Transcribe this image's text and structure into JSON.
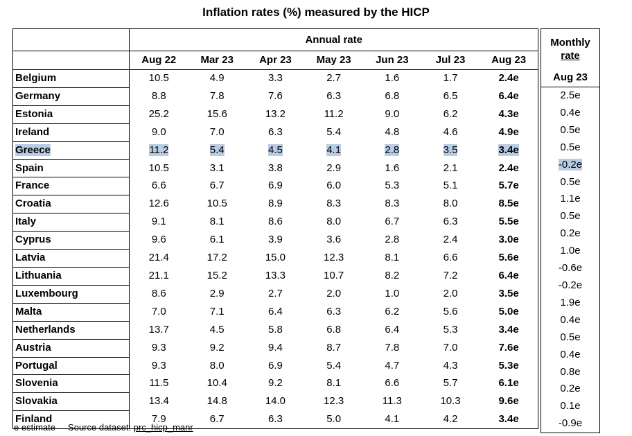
{
  "title": "Inflation rates (%) measured by the HICP",
  "annual_header": "Annual rate",
  "monthly_header_line1": "Monthly",
  "monthly_header_line2": "rate",
  "monthly_month": "Aug 23",
  "columns": [
    "Aug 22",
    "Mar 23",
    "Apr 23",
    "May 23",
    "Jun 23",
    "Jul 23",
    "Aug 23"
  ],
  "highlighted_row": "Greece",
  "rows": [
    {
      "country": "Belgium",
      "values": [
        "10.5",
        "4.9",
        "3.3",
        "2.7",
        "1.6",
        "1.7",
        "2.4e"
      ],
      "monthly": "2.5e"
    },
    {
      "country": "Germany",
      "values": [
        "8.8",
        "7.8",
        "7.6",
        "6.3",
        "6.8",
        "6.5",
        "6.4e"
      ],
      "monthly": "0.4e"
    },
    {
      "country": "Estonia",
      "values": [
        "25.2",
        "15.6",
        "13.2",
        "11.2",
        "9.0",
        "6.2",
        "4.3e"
      ],
      "monthly": "0.5e"
    },
    {
      "country": "Ireland",
      "values": [
        "9.0",
        "7.0",
        "6.3",
        "5.4",
        "4.8",
        "4.6",
        "4.9e"
      ],
      "monthly": "0.5e"
    },
    {
      "country": "Greece",
      "values": [
        "11.2",
        "5.4",
        "4.5",
        "4.1",
        "2.8",
        "3.5",
        "3.4e"
      ],
      "monthly": "-0.2e"
    },
    {
      "country": "Spain",
      "values": [
        "10.5",
        "3.1",
        "3.8",
        "2.9",
        "1.6",
        "2.1",
        "2.4e"
      ],
      "monthly": "0.5e"
    },
    {
      "country": "France",
      "values": [
        "6.6",
        "6.7",
        "6.9",
        "6.0",
        "5.3",
        "5.1",
        "5.7e"
      ],
      "monthly": "1.1e"
    },
    {
      "country": "Croatia",
      "values": [
        "12.6",
        "10.5",
        "8.9",
        "8.3",
        "8.3",
        "8.0",
        "8.5e"
      ],
      "monthly": "0.5e"
    },
    {
      "country": "Italy",
      "values": [
        "9.1",
        "8.1",
        "8.6",
        "8.0",
        "6.7",
        "6.3",
        "5.5e"
      ],
      "monthly": "0.2e"
    },
    {
      "country": "Cyprus",
      "values": [
        "9.6",
        "6.1",
        "3.9",
        "3.6",
        "2.8",
        "2.4",
        "3.0e"
      ],
      "monthly": "1.0e"
    },
    {
      "country": "Latvia",
      "values": [
        "21.4",
        "17.2",
        "15.0",
        "12.3",
        "8.1",
        "6.6",
        "5.6e"
      ],
      "monthly": "-0.6e"
    },
    {
      "country": "Lithuania",
      "values": [
        "21.1",
        "15.2",
        "13.3",
        "10.7",
        "8.2",
        "7.2",
        "6.4e"
      ],
      "monthly": "-0.2e"
    },
    {
      "country": "Luxembourg",
      "values": [
        "8.6",
        "2.9",
        "2.7",
        "2.0",
        "1.0",
        "2.0",
        "3.5e"
      ],
      "monthly": "1.9e"
    },
    {
      "country": "Malta",
      "values": [
        "7.0",
        "7.1",
        "6.4",
        "6.3",
        "6.2",
        "5.6",
        "5.0e"
      ],
      "monthly": "0.4e"
    },
    {
      "country": "Netherlands",
      "values": [
        "13.7",
        "4.5",
        "5.8",
        "6.8",
        "6.4",
        "5.3",
        "3.4e"
      ],
      "monthly": "0.5e"
    },
    {
      "country": "Austria",
      "values": [
        "9.3",
        "9.2",
        "9.4",
        "8.7",
        "7.8",
        "7.0",
        "7.6e"
      ],
      "monthly": "0.4e"
    },
    {
      "country": "Portugal",
      "values": [
        "9.3",
        "8.0",
        "6.9",
        "5.4",
        "4.7",
        "4.3",
        "5.3e"
      ],
      "monthly": "0.8e"
    },
    {
      "country": "Slovenia",
      "values": [
        "11.5",
        "10.4",
        "9.2",
        "8.1",
        "6.6",
        "5.7",
        "6.1e"
      ],
      "monthly": "0.2e"
    },
    {
      "country": "Slovakia",
      "values": [
        "13.4",
        "14.8",
        "14.0",
        "12.3",
        "11.3",
        "10.3",
        "9.6e"
      ],
      "monthly": "0.1e"
    },
    {
      "country": "Finland",
      "values": [
        "7.9",
        "6.7",
        "6.3",
        "5.0",
        "4.1",
        "4.2",
        "3.4e"
      ],
      "monthly": "-0.9e"
    }
  ],
  "footer": {
    "note": "e estimate",
    "source_label": "Source dataset:",
    "source_link": "prc_hicp_manr"
  },
  "colors": {
    "highlight": "#b8cce4",
    "border": "#000000"
  }
}
